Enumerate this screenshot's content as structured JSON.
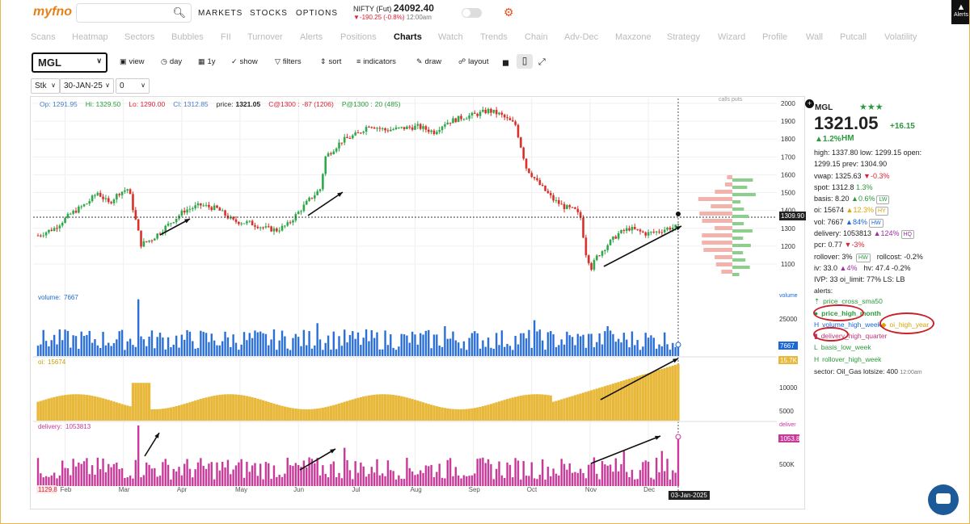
{
  "header": {
    "logo_text": "myfno",
    "search_placeholder": "",
    "nav": [
      "MARKETS",
      "STOCKS",
      "OPTIONS"
    ],
    "nifty": {
      "label": "NIFTY (Fut)",
      "value": "24092.40",
      "change": "-190.25 (-0.8%)",
      "time": "12:00am"
    },
    "alerts_label": "Alerts"
  },
  "tabs": [
    "Scans",
    "Heatmap",
    "Sectors",
    "Bubbles",
    "FII",
    "Turnover",
    "Alerts",
    "Positions",
    "Charts",
    "Watch",
    "Trends",
    "Chain",
    "Adv-Dec",
    "Maxzone",
    "Strategy",
    "Wizard",
    "Profile",
    "Wall",
    "Putcall",
    "Volatility"
  ],
  "active_tab": "Charts",
  "toolbar": {
    "symbol": "MGL",
    "buttons": [
      "view",
      "day",
      "1y",
      "show",
      "filters",
      "sort",
      "indicators",
      "draw",
      "layout"
    ]
  },
  "selectors": {
    "type": "Stk",
    "expiry": "30-JAN-25",
    "strike": "0"
  },
  "ohlc": {
    "op": "Op: 1291.95",
    "hi": "Hi: 1329.50",
    "lo": "Lo: 1290.00",
    "cl": "Cl: 1312.85",
    "price_label": "price:",
    "price": "1321.05",
    "c_label": "C@1300 :",
    "c_val": "-87 (1206)",
    "p_label": "P@1300 :",
    "p_val": "20 (485)"
  },
  "callsputs": "calls   puts",
  "chart_data": {
    "type": "candlestick",
    "x_labels": [
      "Feb",
      "Mar",
      "Apr",
      "May",
      "Jun",
      "Jul",
      "Aug",
      "Sep",
      "Oct",
      "Nov",
      "Dec"
    ],
    "price_axis": [
      2000,
      1900,
      1800,
      1700,
      1600,
      1500,
      1400,
      1300,
      1200,
      1100
    ],
    "last_price": "1309.90",
    "price_path": [
      [
        0,
        1260
      ],
      [
        6,
        1300
      ],
      [
        12,
        1380
      ],
      [
        18,
        1440
      ],
      [
        22,
        1500
      ],
      [
        26,
        1440
      ],
      [
        30,
        1500
      ],
      [
        33,
        1520
      ],
      [
        34,
        1480
      ],
      [
        38,
        1210
      ],
      [
        42,
        1240
      ],
      [
        48,
        1320
      ],
      [
        54,
        1400
      ],
      [
        60,
        1430
      ],
      [
        66,
        1410
      ],
      [
        72,
        1340
      ],
      [
        78,
        1330
      ],
      [
        84,
        1300
      ],
      [
        88,
        1290
      ],
      [
        92,
        1320
      ],
      [
        96,
        1390
      ],
      [
        100,
        1460
      ],
      [
        104,
        1520
      ],
      [
        106,
        1700
      ],
      [
        112,
        1790
      ],
      [
        118,
        1830
      ],
      [
        122,
        1880
      ],
      [
        128,
        1850
      ],
      [
        134,
        1860
      ],
      [
        140,
        1870
      ],
      [
        146,
        1840
      ],
      [
        150,
        1890
      ],
      [
        156,
        1920
      ],
      [
        162,
        1940
      ],
      [
        166,
        1960
      ],
      [
        170,
        1940
      ],
      [
        176,
        1880
      ],
      [
        180,
        1640
      ],
      [
        184,
        1560
      ],
      [
        190,
        1460
      ],
      [
        194,
        1420
      ],
      [
        198,
        1400
      ],
      [
        200,
        1360
      ],
      [
        202,
        1160
      ],
      [
        204,
        1080
      ],
      [
        206,
        1140
      ],
      [
        210,
        1210
      ],
      [
        214,
        1270
      ],
      [
        218,
        1300
      ],
      [
        224,
        1270
      ],
      [
        228,
        1280
      ],
      [
        232,
        1300
      ],
      [
        236,
        1310
      ]
    ],
    "volume": {
      "label": "volume:",
      "value": "7667",
      "axis": "25000",
      "badge": "7667",
      "axis_title": "volume"
    },
    "oi": {
      "label": "oi:",
      "value": "15674",
      "axis": [
        "10000",
        "5000"
      ],
      "badge": "15.7K"
    },
    "delivery": {
      "label": "delivery:",
      "value": "1053813",
      "axis": "500K",
      "badge": "1053.8",
      "axis_title": "deliver"
    },
    "first_badge": "1129.8",
    "date_badge": "03-Jan-2025"
  },
  "info": {
    "symbol": "MGL",
    "stars": "★★★",
    "price": "1321.05",
    "change": "+16.15",
    "pct": "▲1.2%",
    "tag": "HM",
    "rows": [
      {
        "t": "high: 1337.80 low: 1299.15 open:"
      },
      {
        "t": "1299.15 prev: 1304.90"
      },
      {
        "t": "vwap: 1325.63 ",
        "s": "▼-0.3%",
        "sc": "r"
      },
      {
        "t": "spot: 1312.8 ",
        "s": "1.3%",
        "sc": "g"
      },
      {
        "t": "basis: 8.20 ",
        "s": "▲0.6%",
        "sc": "g",
        "bd": "LW"
      },
      {
        "t": "oi: 15674 ",
        "s": "▲12.3%",
        "sc": "o",
        "bd": "HY"
      },
      {
        "t": "vol: 7667 ",
        "s": "▲84%",
        "sc": "b",
        "bd": "HW"
      },
      {
        "t": "delivery: 1053813 ",
        "s": "▲124%",
        "sc": "p",
        "bd": "HQ"
      },
      {
        "t": "pcr: 0.77 ",
        "s": "▼-3%",
        "sc": "r"
      },
      {
        "t": "rollover: 3% ",
        "s": "",
        "sc": "g",
        "bd": "HW",
        "extra": "rollcost: -0.2%"
      },
      {
        "t": "iv: 33.0 ",
        "s": "▲4%",
        "sc": "p",
        "extra": "hv: 47.4 -0.2%"
      },
      {
        "t": "IVP: 33 oi_limit: 77% LS: LB"
      }
    ],
    "alerts_title": "alerts:",
    "alerts": [
      "price_cross_sma50",
      "price_high_month",
      "volume_high_week",
      "oi_high_year",
      "delivery_high_quarter",
      "basis_low_week",
      "rollover_high_week"
    ],
    "sector": "sector: Oil_Gas",
    "lotsize": "lotsize: 400",
    "time": "12:00am"
  }
}
